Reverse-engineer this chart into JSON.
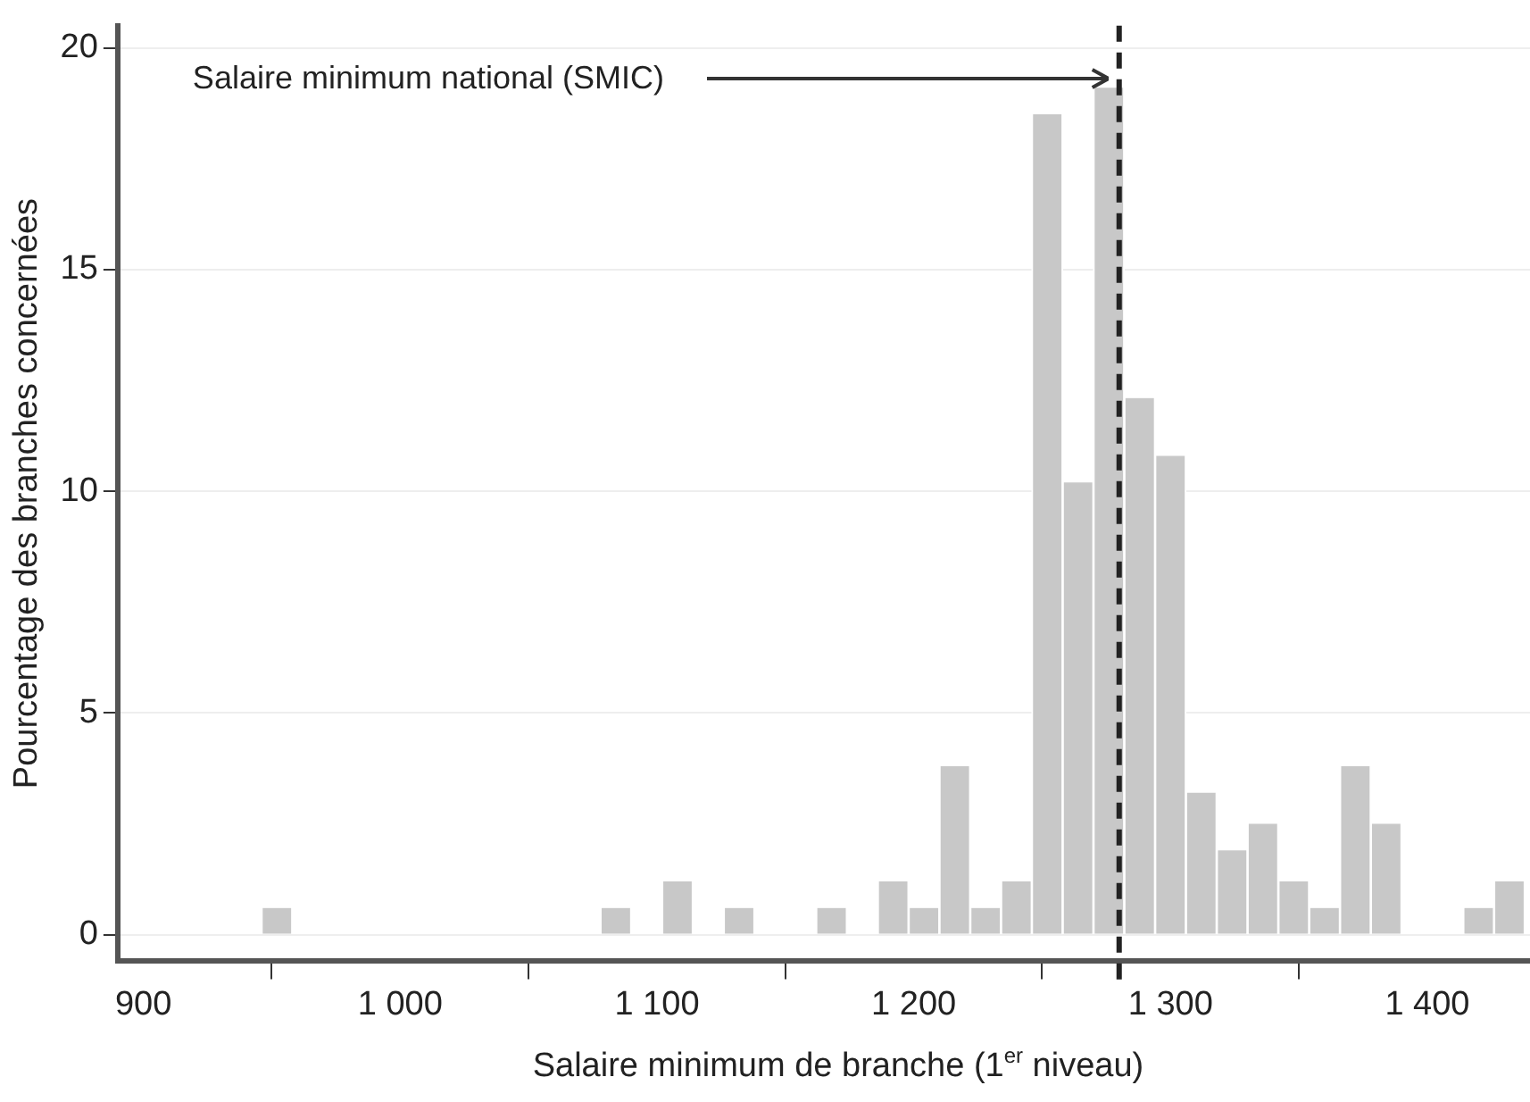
{
  "chart_data": {
    "type": "histogram",
    "xlabel": "Salaire minimum de branche (1$^{er}$ niveau)",
    "ylabel": "Pourcentage des branches concernées",
    "bins": [
      946,
      958,
      970,
      982,
      994,
      1006,
      1018,
      1030,
      1042,
      1054,
      1066,
      1078,
      1090,
      1102,
      1114,
      1126,
      1138,
      1150,
      1162,
      1174,
      1186,
      1198,
      1210,
      1222,
      1234,
      1246,
      1258,
      1270,
      1282,
      1294,
      1306,
      1318,
      1330,
      1342,
      1354,
      1366,
      1378,
      1390,
      1402,
      1414,
      1426,
      1438
    ],
    "values": [
      0.6,
      0,
      0,
      0,
      0,
      0,
      0,
      0,
      0,
      0,
      0,
      0.6,
      0,
      1.2,
      0,
      0.6,
      0,
      0,
      0.6,
      0,
      1.2,
      0.6,
      3.8,
      0.6,
      1.2,
      18.5,
      10.2,
      19.1,
      12.1,
      10.8,
      3.2,
      1.9,
      2.5,
      1.2,
      0.6,
      3.8,
      2.5,
      0,
      0,
      0.6,
      1.2
    ],
    "color": "#c8c8c8",
    "xlim": [
      890,
      1440
    ],
    "xticks": [
      {
        "value": 900,
        "label": "900"
      },
      {
        "value": 1000,
        "label": "1 000"
      },
      {
        "value": 1100,
        "label": "1 100"
      },
      {
        "value": 1200,
        "label": "1 200"
      },
      {
        "value": 1300,
        "label": "1 300"
      },
      {
        "value": 1400,
        "label": "1 400"
      }
    ],
    "ylim": [
      -0.6,
      20.5
    ],
    "yticks": [
      0,
      5,
      10,
      15,
      20
    ],
    "grid": "y",
    "ref_lines": [
      {
        "axis": "x",
        "value": 1280,
        "label": "Salaire minimum national (SMIC)",
        "color": "#222222",
        "line_style": "dashed"
      }
    ]
  }
}
